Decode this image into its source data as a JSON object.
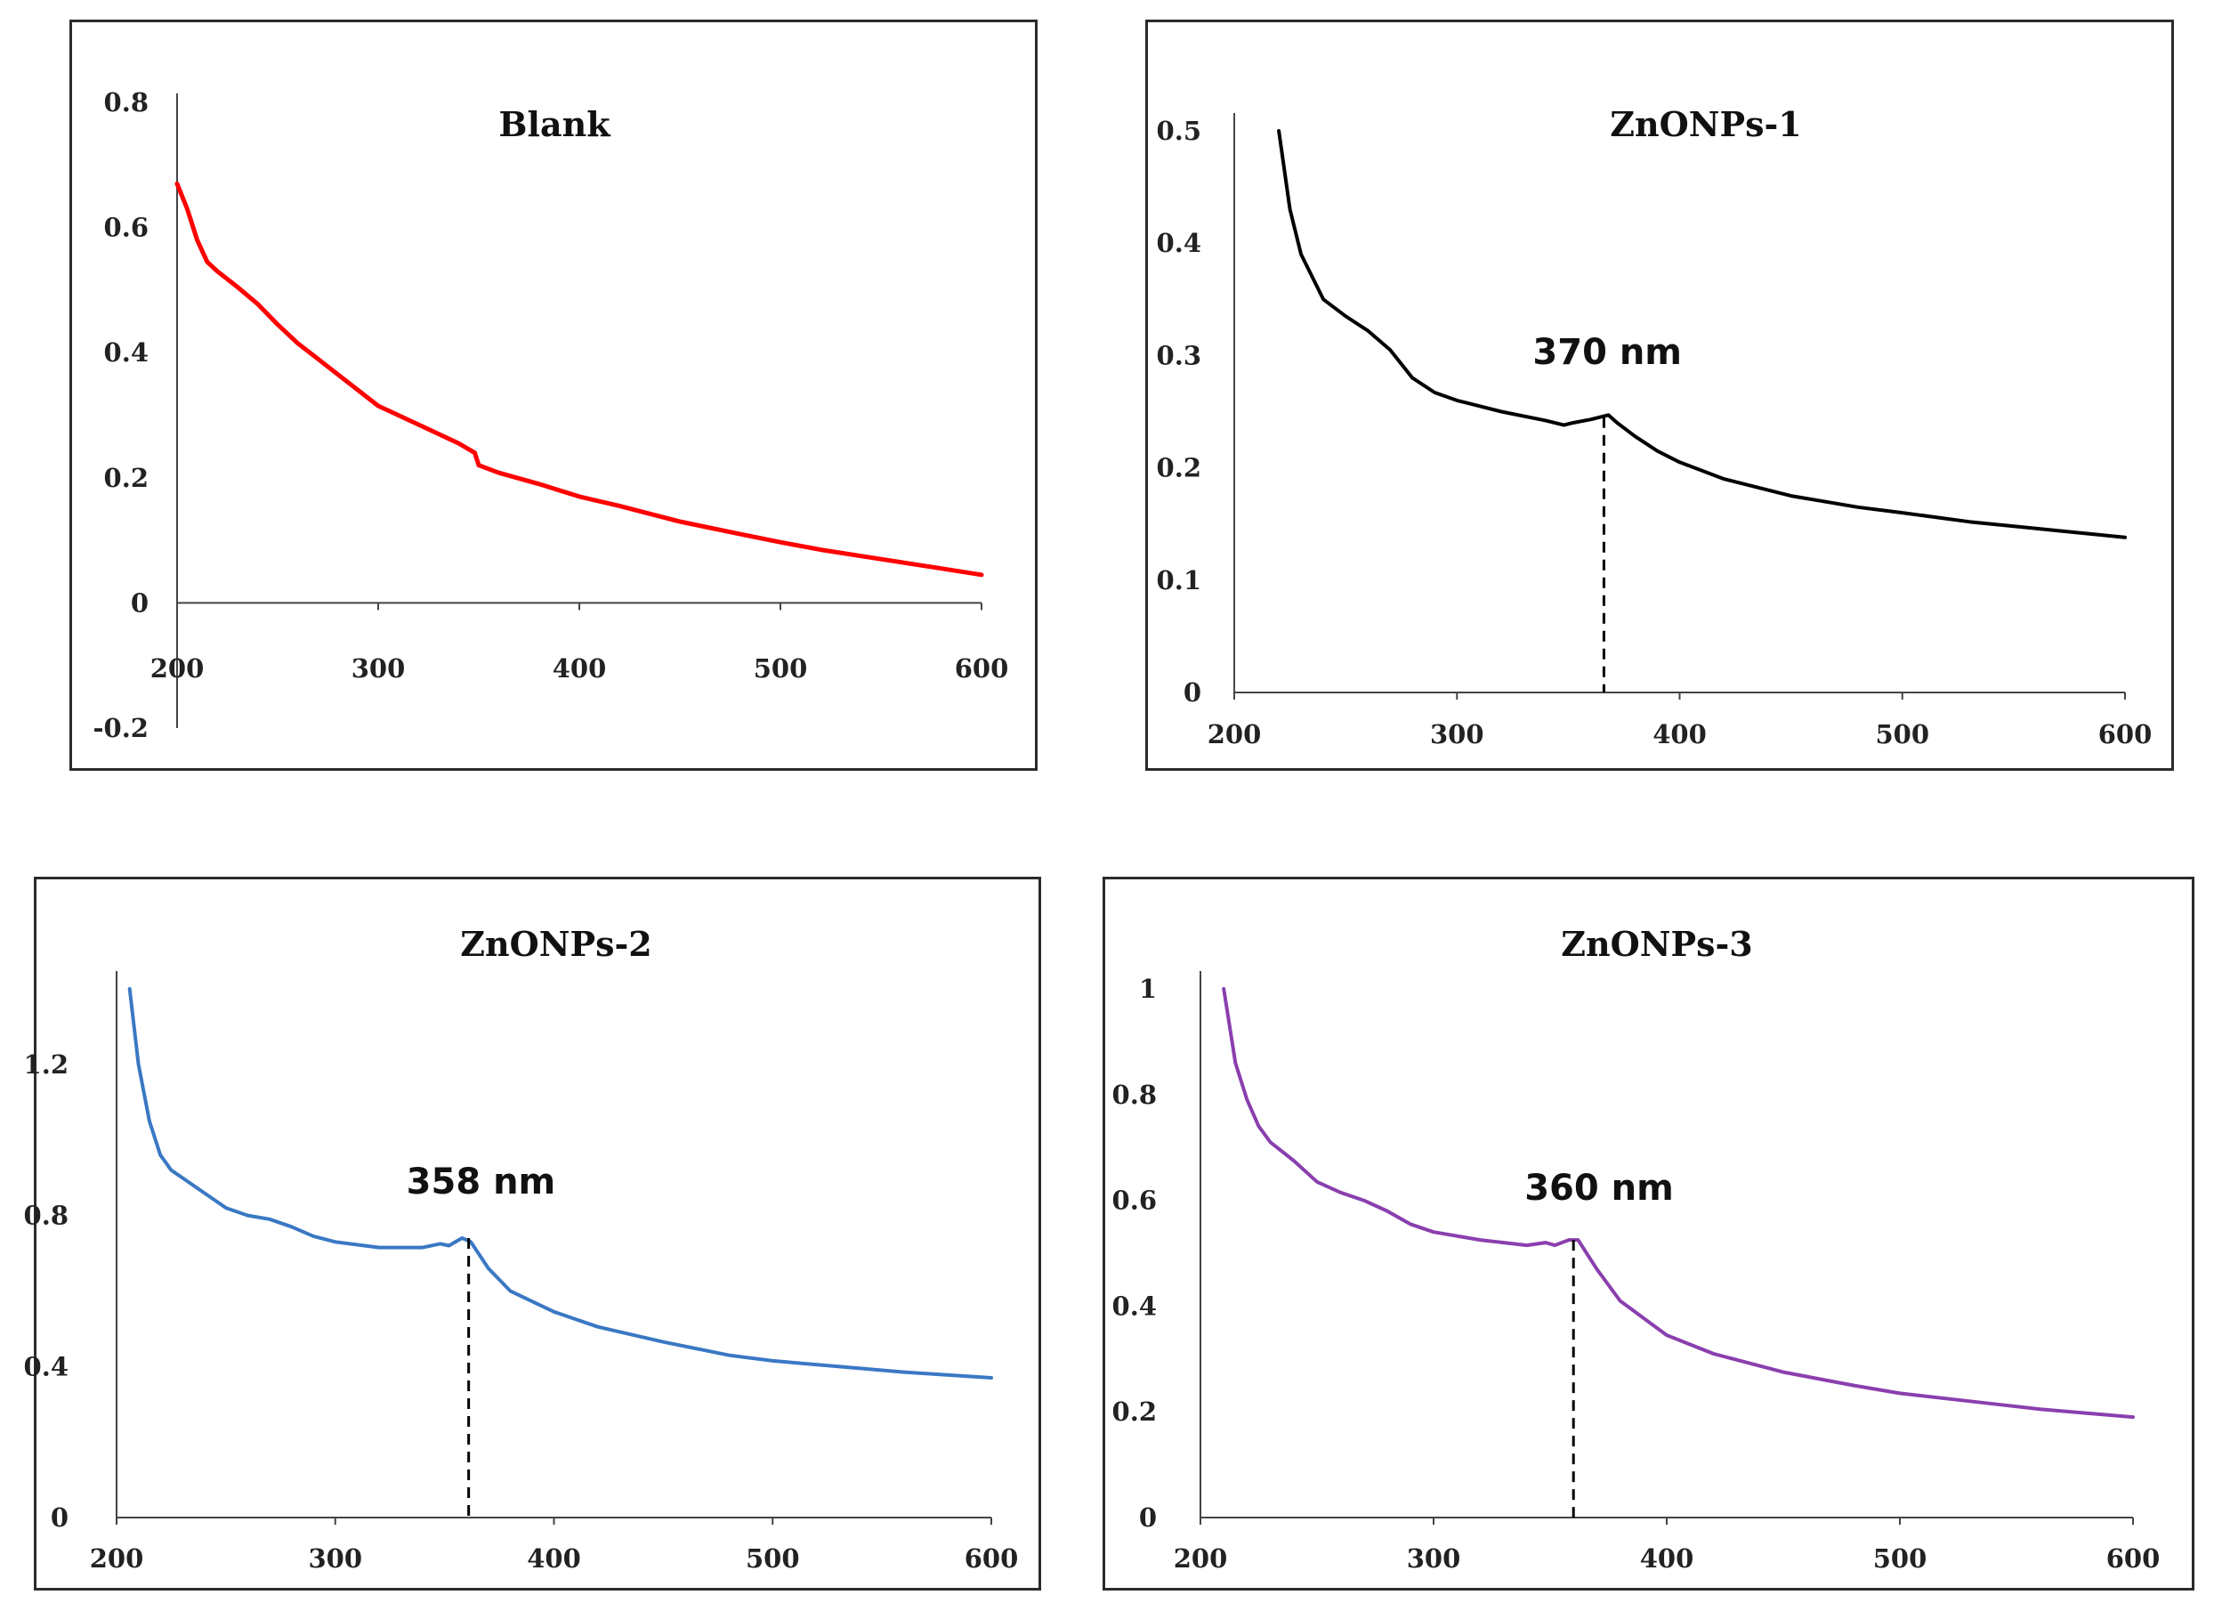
{
  "figure": {
    "description_panels": [
      "Blank",
      "ZnONPs-1",
      "ZnONPs-2",
      "ZnONPs-3"
    ]
  },
  "chart_data": [
    {
      "id": "blank",
      "type": "line",
      "title": "Blank",
      "xlabel": "",
      "ylabel": "",
      "xlim": [
        200,
        600
      ],
      "ylim": [
        -0.2,
        0.8
      ],
      "x_ticks": [
        200,
        300,
        400,
        500,
        600
      ],
      "x_tick_labels": [
        "200",
        "300",
        "400",
        "500",
        "600"
      ],
      "y_ticks": [
        0.8,
        0.6,
        0.4,
        0.2,
        0,
        -0.2
      ],
      "y_tick_labels": [
        "0.8",
        "0.6",
        "0.4",
        "0.2",
        "0",
        "-0.2"
      ],
      "grid": false,
      "color": "#ff0000",
      "series": [
        {
          "name": "Blank",
          "x": [
            200,
            205,
            210,
            215,
            220,
            230,
            240,
            250,
            260,
            270,
            280,
            290,
            300,
            320,
            340,
            348,
            350,
            360,
            380,
            400,
            420,
            450,
            480,
            500,
            520,
            550,
            580,
            600
          ],
          "values": [
            0.67,
            0.63,
            0.58,
            0.545,
            0.53,
            0.505,
            0.478,
            0.445,
            0.415,
            0.39,
            0.365,
            0.34,
            0.315,
            0.285,
            0.255,
            0.24,
            0.22,
            0.208,
            0.19,
            0.17,
            0.155,
            0.13,
            0.11,
            0.097,
            0.085,
            0.07,
            0.055,
            0.045
          ]
        }
      ],
      "annotations": []
    },
    {
      "id": "znonps1",
      "type": "line",
      "title": "ZnONPs-1",
      "xlabel": "",
      "ylabel": "",
      "xlim": [
        200,
        600
      ],
      "ylim": [
        0,
        0.5
      ],
      "x_ticks": [
        200,
        300,
        400,
        500,
        600
      ],
      "x_tick_labels": [
        "200",
        "300",
        "400",
        "500",
        "600"
      ],
      "y_ticks": [
        0.5,
        0.4,
        0.3,
        0.2,
        0.1,
        0
      ],
      "y_tick_labels": [
        "0.5",
        "0.4",
        "0.3",
        "0.2",
        "0.1",
        "0"
      ],
      "grid": false,
      "color": "#000000",
      "series": [
        {
          "name": "ZnONPs-1",
          "x": [
            220,
            225,
            230,
            240,
            250,
            260,
            270,
            280,
            290,
            300,
            320,
            340,
            348,
            352,
            360,
            368,
            372,
            380,
            390,
            400,
            420,
            450,
            480,
            500,
            530,
            560,
            600
          ],
          "values": [
            0.5,
            0.43,
            0.39,
            0.35,
            0.335,
            0.322,
            0.305,
            0.28,
            0.267,
            0.26,
            0.25,
            0.242,
            0.238,
            0.24,
            0.243,
            0.247,
            0.24,
            0.228,
            0.215,
            0.205,
            0.19,
            0.175,
            0.165,
            0.16,
            0.152,
            0.146,
            0.138
          ]
        }
      ],
      "annotations": [
        {
          "text": "370 nm",
          "x": 366,
          "y": 0.245
        }
      ]
    },
    {
      "id": "znonps2",
      "type": "line",
      "title": "ZnONPs-2",
      "xlabel": "",
      "ylabel": "",
      "xlim": [
        200,
        600
      ],
      "ylim": [
        0,
        1.4
      ],
      "x_ticks": [
        200,
        300,
        400,
        500,
        600
      ],
      "x_tick_labels": [
        "200",
        "300",
        "400",
        "500",
        "600"
      ],
      "y_ticks": [
        1.2,
        0.8,
        0.4,
        0
      ],
      "y_tick_labels": [
        "1.2",
        "0.8",
        "0.4",
        "0"
      ],
      "grid": false,
      "color": "#3a78c4",
      "series": [
        {
          "name": "ZnONPs-2",
          "x": [
            206,
            210,
            215,
            220,
            225,
            230,
            240,
            250,
            260,
            270,
            280,
            290,
            300,
            320,
            340,
            348,
            352,
            358,
            362,
            370,
            380,
            400,
            420,
            450,
            480,
            500,
            530,
            560,
            600
          ],
          "values": [
            1.4,
            1.2,
            1.05,
            0.96,
            0.92,
            0.9,
            0.86,
            0.82,
            0.8,
            0.79,
            0.77,
            0.745,
            0.73,
            0.715,
            0.715,
            0.725,
            0.72,
            0.74,
            0.73,
            0.66,
            0.6,
            0.545,
            0.505,
            0.465,
            0.43,
            0.415,
            0.4,
            0.385,
            0.37
          ]
        }
      ],
      "annotations": [
        {
          "text": "358 nm",
          "x": 361,
          "y": 0.74
        }
      ]
    },
    {
      "id": "znonps3",
      "type": "line",
      "title": "ZnONPs-3",
      "xlabel": "",
      "ylabel": "",
      "xlim": [
        200,
        600
      ],
      "ylim": [
        0,
        1
      ],
      "x_ticks": [
        200,
        300,
        400,
        500,
        600
      ],
      "x_tick_labels": [
        "200",
        "300",
        "400",
        "500",
        "600"
      ],
      "y_ticks": [
        1,
        0.8,
        0.6,
        0.4,
        0.2,
        0
      ],
      "y_tick_labels": [
        "1",
        "0.8",
        "0.6",
        "0.4",
        "0.2",
        "0"
      ],
      "grid": false,
      "color": "#8a3fae",
      "series": [
        {
          "name": "ZnONPs-3",
          "x": [
            210,
            215,
            220,
            225,
            230,
            240,
            250,
            260,
            270,
            280,
            290,
            300,
            320,
            340,
            348,
            352,
            358,
            362,
            370,
            380,
            400,
            420,
            450,
            480,
            500,
            530,
            560,
            600
          ],
          "values": [
            1.0,
            0.86,
            0.79,
            0.74,
            0.71,
            0.675,
            0.635,
            0.615,
            0.6,
            0.58,
            0.555,
            0.54,
            0.525,
            0.515,
            0.52,
            0.515,
            0.525,
            0.525,
            0.47,
            0.41,
            0.345,
            0.31,
            0.275,
            0.25,
            0.235,
            0.22,
            0.205,
            0.19
          ]
        }
      ],
      "annotations": [
        {
          "text": "360 nm",
          "x": 360,
          "y": 0.525
        }
      ]
    }
  ]
}
